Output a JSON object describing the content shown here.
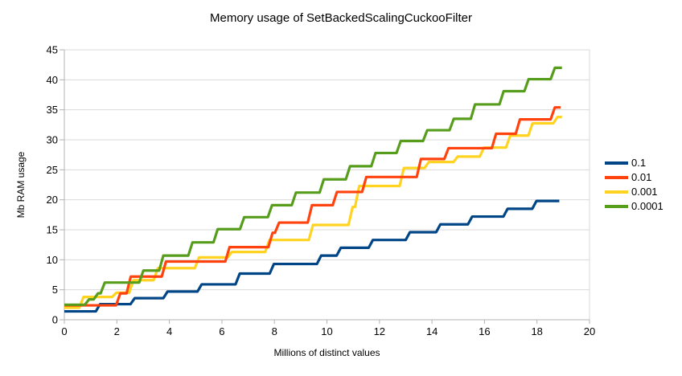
{
  "chart_data": {
    "type": "line",
    "subtype": "step",
    "title": "Memory usage of SetBackedScalingCuckooFilter",
    "xlabel": "Millions of distinct values",
    "ylabel": "Mb RAM usage",
    "xlim": [
      0,
      20
    ],
    "ylim": [
      0,
      45
    ],
    "x_ticks": [
      0,
      2,
      4,
      6,
      8,
      10,
      12,
      14,
      16,
      18,
      20
    ],
    "y_ticks": [
      0,
      5,
      10,
      15,
      20,
      25,
      30,
      35,
      40,
      45
    ],
    "grid": "horizontal",
    "legend_position": "right",
    "axis_color": "#b3b3b3",
    "grid_color": "#d9d9d9",
    "series": [
      {
        "name": "0.1",
        "color": "#004586",
        "x_end": 18.85,
        "step_points": [
          [
            0,
            1.4
          ],
          [
            1.28,
            2.6
          ],
          [
            2.6,
            3.6
          ],
          [
            3.85,
            4.7
          ],
          [
            5.15,
            5.9
          ],
          [
            6.6,
            7.7
          ],
          [
            7.9,
            9.3
          ],
          [
            9.7,
            10.7
          ],
          [
            10.45,
            12.0
          ],
          [
            11.67,
            13.3
          ],
          [
            13.08,
            14.6
          ],
          [
            14.24,
            15.9
          ],
          [
            15.45,
            17.2
          ],
          [
            16.8,
            18.5
          ],
          [
            17.9,
            19.8
          ]
        ]
      },
      {
        "name": "0.01",
        "color": "#FF420E",
        "x_end": 18.9,
        "step_points": [
          [
            0,
            2.4
          ],
          [
            2.05,
            4.4
          ],
          [
            2.45,
            7.2
          ],
          [
            3.79,
            9.7
          ],
          [
            6.21,
            12.1
          ],
          [
            7.85,
            14.5
          ],
          [
            8.1,
            16.2
          ],
          [
            9.35,
            19.1
          ],
          [
            10.3,
            21.3
          ],
          [
            11.42,
            23.8
          ],
          [
            13.5,
            26.8
          ],
          [
            14.55,
            28.6
          ],
          [
            16.36,
            31.0
          ],
          [
            17.27,
            33.4
          ],
          [
            18.6,
            35.4
          ]
        ]
      },
      {
        "name": "0.001",
        "color": "#FFD320",
        "x_end": 18.95,
        "step_points": [
          [
            0,
            2.0
          ],
          [
            0.65,
            3.8
          ],
          [
            1.9,
            4.5
          ],
          [
            2.55,
            6.6
          ],
          [
            3.48,
            8.6
          ],
          [
            5.05,
            10.4
          ],
          [
            6.3,
            11.3
          ],
          [
            7.73,
            13.3
          ],
          [
            9.39,
            15.8
          ],
          [
            10.9,
            18.8
          ],
          [
            11.15,
            22.3
          ],
          [
            12.85,
            25.3
          ],
          [
            13.8,
            26.3
          ],
          [
            14.9,
            27.2
          ],
          [
            15.9,
            28.7
          ],
          [
            16.9,
            30.7
          ],
          [
            17.75,
            32.75
          ],
          [
            18.7,
            33.8
          ]
        ]
      },
      {
        "name": "0.0001",
        "color": "#579D1C",
        "x_end": 18.95,
        "step_points": [
          [
            0,
            2.5
          ],
          [
            0.86,
            3.4
          ],
          [
            1.2,
            4.4
          ],
          [
            1.46,
            6.2
          ],
          [
            2.93,
            8.2
          ],
          [
            3.69,
            10.7
          ],
          [
            4.8,
            12.9
          ],
          [
            5.76,
            15.1
          ],
          [
            6.77,
            17.1
          ],
          [
            7.83,
            19.1
          ],
          [
            8.74,
            21.2
          ],
          [
            9.8,
            23.4
          ],
          [
            10.8,
            25.6
          ],
          [
            11.77,
            27.8
          ],
          [
            12.73,
            29.8
          ],
          [
            13.74,
            31.6
          ],
          [
            14.75,
            33.5
          ],
          [
            15.56,
            35.9
          ],
          [
            16.65,
            38.1
          ],
          [
            17.6,
            40.1
          ],
          [
            18.6,
            42.0
          ]
        ]
      }
    ]
  }
}
